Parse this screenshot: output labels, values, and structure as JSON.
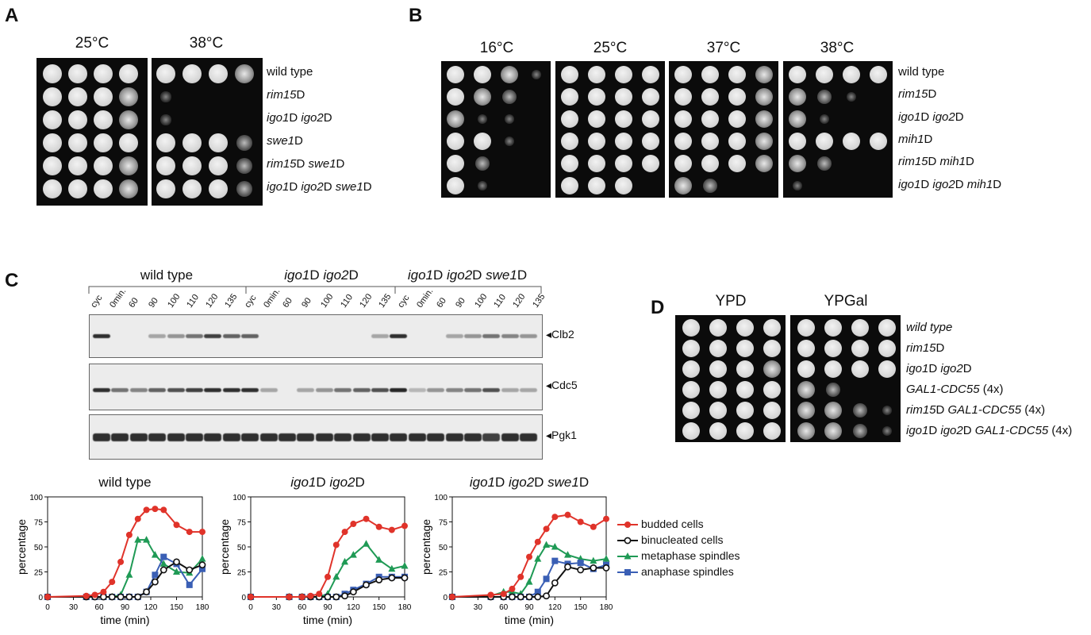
{
  "panels": {
    "A": "A",
    "B": "B",
    "C": "C",
    "D": "D"
  },
  "panelA": {
    "temps": [
      "25°C",
      "38°C"
    ],
    "strains": [
      [
        {
          "t": "wild type",
          "i": false
        }
      ],
      [
        {
          "t": "rim15",
          "i": true
        },
        {
          "t": "D",
          "i": false
        }
      ],
      [
        {
          "t": "igo1",
          "i": true
        },
        {
          "t": "D ",
          "i": false
        },
        {
          "t": "igo2",
          "i": true
        },
        {
          "t": "D",
          "i": false
        }
      ],
      [
        {
          "t": "swe1",
          "i": true
        },
        {
          "t": "D",
          "i": false
        }
      ],
      [
        {
          "t": "rim15",
          "i": true
        },
        {
          "t": "D ",
          "i": false
        },
        {
          "t": "swe1",
          "i": true
        },
        {
          "t": "D",
          "i": false
        }
      ],
      [
        {
          "t": "igo1",
          "i": true
        },
        {
          "t": "D ",
          "i": false
        },
        {
          "t": "igo2",
          "i": true
        },
        {
          "t": "D ",
          "i": false
        },
        {
          "t": "swe1",
          "i": true
        },
        {
          "t": "D",
          "i": false
        }
      ]
    ],
    "growth": [
      [
        [
          4,
          4,
          4,
          4
        ],
        [
          4,
          4,
          4,
          3
        ]
      ],
      [
        [
          4,
          4,
          4,
          3
        ],
        [
          1,
          0,
          0,
          0
        ]
      ],
      [
        [
          4,
          4,
          4,
          3
        ],
        [
          1,
          0,
          0,
          0
        ]
      ],
      [
        [
          4,
          4,
          4,
          4
        ],
        [
          4,
          4,
          4,
          2
        ]
      ],
      [
        [
          4,
          4,
          4,
          3
        ],
        [
          4,
          4,
          4,
          2
        ]
      ],
      [
        [
          4,
          4,
          4,
          3
        ],
        [
          4,
          4,
          4,
          2
        ]
      ]
    ]
  },
  "panelB": {
    "temps": [
      "16°C",
      "25°C",
      "37°C",
      "38°C"
    ],
    "strains": [
      [
        {
          "t": "wild type",
          "i": false
        }
      ],
      [
        {
          "t": "rim15",
          "i": true
        },
        {
          "t": "D",
          "i": false
        }
      ],
      [
        {
          "t": "igo1",
          "i": true
        },
        {
          "t": "D ",
          "i": false
        },
        {
          "t": "igo2",
          "i": true
        },
        {
          "t": "D",
          "i": false
        }
      ],
      [
        {
          "t": "mih1",
          "i": true
        },
        {
          "t": "D",
          "i": false
        }
      ],
      [
        {
          "t": "rim15",
          "i": true
        },
        {
          "t": "D ",
          "i": false
        },
        {
          "t": "mih1",
          "i": true
        },
        {
          "t": "D",
          "i": false
        }
      ],
      [
        {
          "t": "igo1",
          "i": true
        },
        {
          "t": "D ",
          "i": false
        },
        {
          "t": "igo2",
          "i": true
        },
        {
          "t": "D ",
          "i": false
        },
        {
          "t": "mih1",
          "i": true
        },
        {
          "t": "D",
          "i": false
        }
      ]
    ],
    "growth": [
      [
        [
          4,
          4,
          3,
          1
        ],
        [
          4,
          4,
          4,
          4
        ],
        [
          4,
          4,
          4,
          3
        ],
        [
          4,
          4,
          4,
          4
        ]
      ],
      [
        [
          4,
          3,
          2,
          0
        ],
        [
          4,
          4,
          4,
          4
        ],
        [
          4,
          4,
          4,
          3
        ],
        [
          3,
          2,
          1,
          0
        ]
      ],
      [
        [
          3,
          1,
          1,
          0
        ],
        [
          4,
          4,
          4,
          4
        ],
        [
          4,
          4,
          4,
          3
        ],
        [
          3,
          1,
          0,
          0
        ]
      ],
      [
        [
          4,
          4,
          1,
          0
        ],
        [
          4,
          4,
          4,
          4
        ],
        [
          4,
          4,
          4,
          3
        ],
        [
          4,
          4,
          4,
          4
        ]
      ],
      [
        [
          4,
          2,
          0,
          0
        ],
        [
          4,
          4,
          4,
          4
        ],
        [
          4,
          4,
          4,
          3
        ],
        [
          3,
          2,
          0,
          0
        ]
      ],
      [
        [
          4,
          1,
          0,
          0
        ],
        [
          4,
          4,
          4,
          0
        ],
        [
          3,
          2,
          0,
          0
        ],
        [
          1,
          0,
          0,
          0
        ]
      ]
    ]
  },
  "panelC": {
    "groups": [
      [
        {
          "t": "wild type",
          "i": false
        }
      ],
      [
        {
          "t": "igo1",
          "i": true
        },
        {
          "t": "D ",
          "i": false
        },
        {
          "t": "igo2",
          "i": true
        },
        {
          "t": "D",
          "i": false
        }
      ],
      [
        {
          "t": "igo1",
          "i": true
        },
        {
          "t": "D ",
          "i": false
        },
        {
          "t": "igo2",
          "i": true
        },
        {
          "t": "D ",
          "i": false
        },
        {
          "t": "swe1",
          "i": true
        },
        {
          "t": "D",
          "i": false
        }
      ]
    ],
    "lanes": [
      "cyc",
      "0min.",
      "60",
      "90",
      "100",
      "110",
      "120",
      "135",
      "cyc",
      "0min.",
      "60",
      "90",
      "100",
      "110",
      "120",
      "135",
      "cyc",
      "0min.",
      "60",
      "90",
      "100",
      "110",
      "120",
      "135"
    ],
    "blots": [
      {
        "name": "Clb2",
        "bands": [
          0.9,
          0,
          0,
          0.2,
          0.3,
          0.5,
          0.8,
          0.6,
          0.6,
          0,
          0,
          0,
          0,
          0,
          0,
          0.2,
          0.9,
          0,
          0,
          0.2,
          0.3,
          0.5,
          0.4,
          0.3
        ]
      },
      {
        "name": "Cdc5",
        "bands": [
          0.9,
          0.5,
          0.4,
          0.6,
          0.7,
          0.8,
          0.9,
          0.9,
          0.9,
          0.2,
          0,
          0.2,
          0.3,
          0.5,
          0.6,
          0.7,
          0.95,
          0.1,
          0.3,
          0.4,
          0.5,
          0.7,
          0.2,
          0.2
        ]
      },
      {
        "name": "Pgk1",
        "bands": [
          0.9,
          0.9,
          0.9,
          0.9,
          0.9,
          0.9,
          0.9,
          0.9,
          0.9,
          0.9,
          0.9,
          0.9,
          0.9,
          0.9,
          0.9,
          0.9,
          0.9,
          0.9,
          0.9,
          0.9,
          0.9,
          0.8,
          0.9,
          0.9
        ]
      }
    ],
    "arrow": "◂"
  },
  "chart_data": [
    {
      "type": "line",
      "title": "wild type",
      "xlabel": "time (min)",
      "ylabel": "percentage",
      "xlim": [
        0,
        180
      ],
      "ylim": [
        0,
        100
      ],
      "xticks": [
        0,
        30,
        60,
        90,
        120,
        150,
        180
      ],
      "yticks": [
        0,
        25,
        50,
        75,
        100
      ],
      "series": [
        {
          "name": "budded cells",
          "x": [
            0,
            45,
            55,
            65,
            75,
            85,
            95,
            105,
            115,
            125,
            135,
            150,
            165,
            180
          ],
          "y": [
            0,
            1,
            2,
            5,
            15,
            35,
            62,
            78,
            87,
            88,
            87,
            72,
            65,
            65
          ]
        },
        {
          "name": "binucleated cells",
          "x": [
            0,
            45,
            55,
            65,
            75,
            85,
            95,
            105,
            115,
            125,
            135,
            150,
            165,
            180
          ],
          "y": [
            0,
            0,
            0,
            0,
            0,
            0,
            0,
            0,
            5,
            15,
            27,
            35,
            27,
            32
          ]
        },
        {
          "name": "metaphase spindles",
          "x": [
            0,
            45,
            55,
            65,
            75,
            85,
            95,
            105,
            115,
            125,
            135,
            150,
            165,
            180
          ],
          "y": [
            0,
            0,
            0,
            0,
            0,
            2,
            22,
            57,
            57,
            42,
            33,
            25,
            24,
            38
          ]
        },
        {
          "name": "anaphase spindles",
          "x": [
            0,
            45,
            55,
            65,
            75,
            85,
            95,
            105,
            115,
            125,
            135,
            150,
            165,
            180
          ],
          "y": [
            0,
            0,
            0,
            0,
            0,
            0,
            0,
            0,
            5,
            22,
            40,
            33,
            12,
            28
          ]
        }
      ]
    },
    {
      "type": "line",
      "title": "igo1D igo2D",
      "xlabel": "time (min)",
      "ylabel": "percentage",
      "xlim": [
        0,
        180
      ],
      "ylim": [
        0,
        100
      ],
      "xticks": [
        0,
        30,
        60,
        90,
        120,
        150,
        180
      ],
      "yticks": [
        0,
        25,
        50,
        75,
        100
      ],
      "series": [
        {
          "name": "budded cells",
          "x": [
            0,
            45,
            60,
            70,
            80,
            90,
            100,
            110,
            120,
            135,
            150,
            165,
            180
          ],
          "y": [
            0,
            0,
            0,
            1,
            3,
            20,
            52,
            65,
            73,
            78,
            70,
            67,
            71
          ]
        },
        {
          "name": "binucleated cells",
          "x": [
            0,
            45,
            60,
            70,
            80,
            90,
            100,
            110,
            120,
            135,
            150,
            165,
            180
          ],
          "y": [
            0,
            0,
            0,
            0,
            0,
            0,
            0,
            1,
            5,
            12,
            17,
            19,
            19
          ]
        },
        {
          "name": "metaphase spindles",
          "x": [
            0,
            45,
            60,
            70,
            80,
            90,
            100,
            110,
            120,
            135,
            150,
            165,
            180
          ],
          "y": [
            0,
            0,
            0,
            0,
            0,
            3,
            20,
            35,
            42,
            53,
            37,
            28,
            31
          ]
        },
        {
          "name": "anaphase spindles",
          "x": [
            0,
            45,
            60,
            70,
            80,
            90,
            100,
            110,
            120,
            135,
            150,
            165,
            180
          ],
          "y": [
            0,
            0,
            0,
            0,
            0,
            0,
            0,
            3,
            7,
            13,
            20,
            20,
            20
          ]
        }
      ]
    },
    {
      "type": "line",
      "title": "igo1D igo2D swe1D",
      "xlabel": "time (min)",
      "ylabel": "percentage",
      "xlim": [
        0,
        180
      ],
      "ylim": [
        0,
        100
      ],
      "xticks": [
        0,
        30,
        60,
        90,
        120,
        150,
        180
      ],
      "yticks": [
        0,
        25,
        50,
        75,
        100
      ],
      "series": [
        {
          "name": "budded cells",
          "x": [
            0,
            45,
            60,
            70,
            80,
            90,
            100,
            110,
            120,
            135,
            150,
            165,
            180
          ],
          "y": [
            0,
            2,
            3,
            8,
            20,
            40,
            55,
            68,
            80,
            82,
            75,
            70,
            78
          ]
        },
        {
          "name": "binucleated cells",
          "x": [
            0,
            45,
            60,
            70,
            80,
            90,
            100,
            110,
            120,
            135,
            150,
            165,
            180
          ],
          "y": [
            0,
            0,
            0,
            0,
            0,
            0,
            0,
            1,
            14,
            30,
            27,
            29,
            29
          ]
        },
        {
          "name": "metaphase spindles",
          "x": [
            0,
            45,
            60,
            70,
            80,
            90,
            100,
            110,
            120,
            135,
            150,
            165,
            180
          ],
          "y": [
            0,
            1,
            5,
            5,
            3,
            15,
            38,
            52,
            50,
            42,
            38,
            36,
            38
          ]
        },
        {
          "name": "anaphase spindles",
          "x": [
            0,
            45,
            60,
            70,
            80,
            90,
            100,
            110,
            120,
            135,
            150,
            165,
            180
          ],
          "y": [
            0,
            0,
            0,
            0,
            0,
            0,
            5,
            18,
            36,
            33,
            34,
            28,
            32
          ]
        }
      ]
    }
  ],
  "chart_titles": [
    [
      {
        "t": "wild type",
        "i": false
      }
    ],
    [
      {
        "t": "igo1",
        "i": true
      },
      {
        "t": "D ",
        "i": false
      },
      {
        "t": "igo2",
        "i": true
      },
      {
        "t": "D",
        "i": false
      }
    ],
    [
      {
        "t": "igo1",
        "i": true
      },
      {
        "t": "D ",
        "i": false
      },
      {
        "t": "igo2",
        "i": true
      },
      {
        "t": "D ",
        "i": false
      },
      {
        "t": "swe1",
        "i": true
      },
      {
        "t": "D",
        "i": false
      }
    ]
  ],
  "legend": [
    {
      "label": "budded cells",
      "color": "#e0332a",
      "marker": "circle-filled"
    },
    {
      "label": "binucleated cells",
      "color": "#111111",
      "marker": "circle-open"
    },
    {
      "label": "metaphase spindles",
      "color": "#1f9a55",
      "marker": "triangle"
    },
    {
      "label": "anaphase spindles",
      "color": "#3a5fb5",
      "marker": "square"
    }
  ],
  "panelD": {
    "media": [
      "YPD",
      "YPGal"
    ],
    "strains": [
      [
        {
          "t": "wild type",
          "i": true
        }
      ],
      [
        {
          "t": "rim15",
          "i": true
        },
        {
          "t": "D",
          "i": false
        }
      ],
      [
        {
          "t": "igo1",
          "i": true
        },
        {
          "t": "D ",
          "i": false
        },
        {
          "t": "igo2",
          "i": true
        },
        {
          "t": "D",
          "i": false
        }
      ],
      [
        {
          "t": "GAL1-CDC55",
          "i": true
        },
        {
          "t": " (4x)",
          "i": false
        }
      ],
      [
        {
          "t": "rim15",
          "i": true
        },
        {
          "t": "D ",
          "i": false
        },
        {
          "t": "GAL1-CDC55",
          "i": true
        },
        {
          "t": " (4x)",
          "i": false
        }
      ],
      [
        {
          "t": "igo1",
          "i": true
        },
        {
          "t": "D ",
          "i": false
        },
        {
          "t": "igo2",
          "i": true
        },
        {
          "t": "D ",
          "i": false
        },
        {
          "t": "GAL1-CDC55",
          "i": true
        },
        {
          "t": " (4x)",
          "i": false
        }
      ]
    ],
    "growth": [
      [
        [
          4,
          4,
          4,
          4
        ],
        [
          4,
          4,
          4,
          4
        ]
      ],
      [
        [
          4,
          4,
          4,
          4
        ],
        [
          4,
          4,
          4,
          4
        ]
      ],
      [
        [
          4,
          4,
          4,
          3
        ],
        [
          4,
          4,
          4,
          4
        ]
      ],
      [
        [
          4,
          4,
          4,
          4
        ],
        [
          3,
          2,
          0,
          0
        ]
      ],
      [
        [
          4,
          4,
          4,
          4
        ],
        [
          3,
          3,
          2,
          1
        ]
      ],
      [
        [
          4,
          4,
          4,
          4
        ],
        [
          3,
          3,
          2,
          1
        ]
      ]
    ]
  }
}
